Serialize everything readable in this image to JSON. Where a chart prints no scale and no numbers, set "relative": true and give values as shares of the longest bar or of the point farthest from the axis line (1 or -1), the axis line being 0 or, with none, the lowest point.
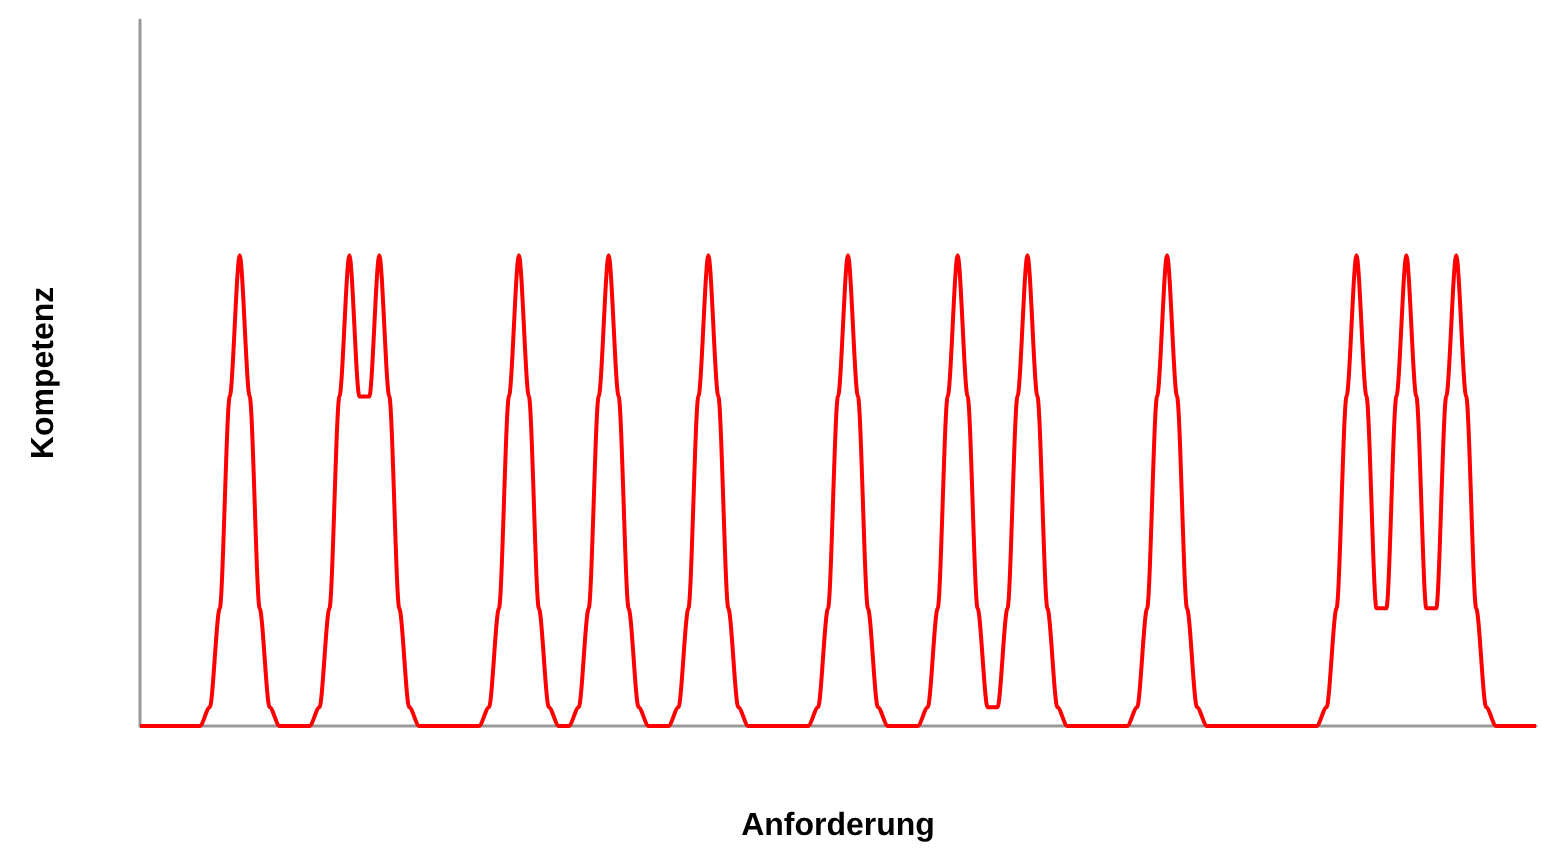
{
  "chart_data": {
    "type": "line",
    "xlabel": "Anforderung",
    "ylabel": "Kompetenz",
    "relative": true,
    "categories": [
      null,
      null,
      null,
      null,
      null,
      null,
      null,
      null,
      null,
      null,
      null,
      null,
      null,
      null,
      null,
      null,
      null,
      null,
      null,
      null,
      null,
      null,
      null,
      null,
      null,
      null,
      null,
      null,
      null,
      null,
      null,
      null,
      null,
      null,
      null,
      null,
      null,
      null,
      null,
      null,
      null,
      null,
      null,
      null,
      null,
      null,
      null,
      null,
      null,
      null,
      null,
      null,
      null,
      null,
      null,
      null,
      null,
      null,
      null,
      null,
      null,
      null,
      null,
      null,
      null,
      null,
      null,
      null,
      null,
      null,
      null,
      null,
      null,
      null,
      null,
      null,
      null,
      null,
      null,
      null,
      null,
      null,
      null,
      null,
      null,
      null,
      null,
      null,
      null,
      null,
      null,
      null,
      null,
      null,
      null,
      null,
      null,
      null,
      null,
      null,
      null,
      null,
      null,
      null,
      null,
      null,
      null,
      null,
      null,
      null,
      null,
      null,
      null,
      null,
      null,
      null,
      null,
      null,
      null,
      null,
      null,
      null,
      null,
      null,
      null,
      null,
      null,
      null,
      null,
      null,
      null,
      null,
      null,
      null,
      null,
      null,
      null,
      null,
      null,
      null,
      null
    ],
    "series": [
      {
        "color": "#ff0000",
        "values": [
          0,
          0,
          0,
          0,
          0,
          0,
          0,
          0.04,
          0.25,
          0.7,
          1,
          0.7,
          0.25,
          0.04,
          0,
          0,
          0,
          0,
          0.04,
          0.25,
          0.7,
          1,
          0.7,
          0.7,
          1,
          0.7,
          0.25,
          0.04,
          0,
          0,
          0,
          0,
          0,
          0,
          0,
          0.04,
          0.25,
          0.7,
          1,
          0.7,
          0.25,
          0.04,
          0,
          0,
          0.04,
          0.25,
          0.7,
          1,
          0.7,
          0.25,
          0.04,
          0,
          0,
          0,
          0.04,
          0.25,
          0.7,
          1,
          0.7,
          0.25,
          0.04,
          0,
          0,
          0,
          0,
          0,
          0,
          0,
          0.04,
          0.25,
          0.7,
          1,
          0.7,
          0.25,
          0.04,
          0,
          0,
          0,
          0,
          0.04,
          0.25,
          0.7,
          1,
          0.7,
          0.25,
          0.04,
          0.04,
          0.25,
          0.7,
          1,
          0.7,
          0.25,
          0.04,
          0,
          0,
          0,
          0,
          0,
          0,
          0,
          0.04,
          0.25,
          0.7,
          1,
          0.7,
          0.25,
          0.04,
          0,
          0,
          0,
          0,
          0,
          0,
          0,
          0,
          0,
          0,
          0,
          0,
          0.04,
          0.25,
          0.7,
          1,
          0.7,
          0.25,
          0.25,
          0.7,
          1,
          0.7,
          0.25,
          0.25,
          0.7,
          1,
          0.7,
          0.25,
          0.04,
          0,
          0,
          0,
          0,
          0
        ]
      }
    ]
  }
}
